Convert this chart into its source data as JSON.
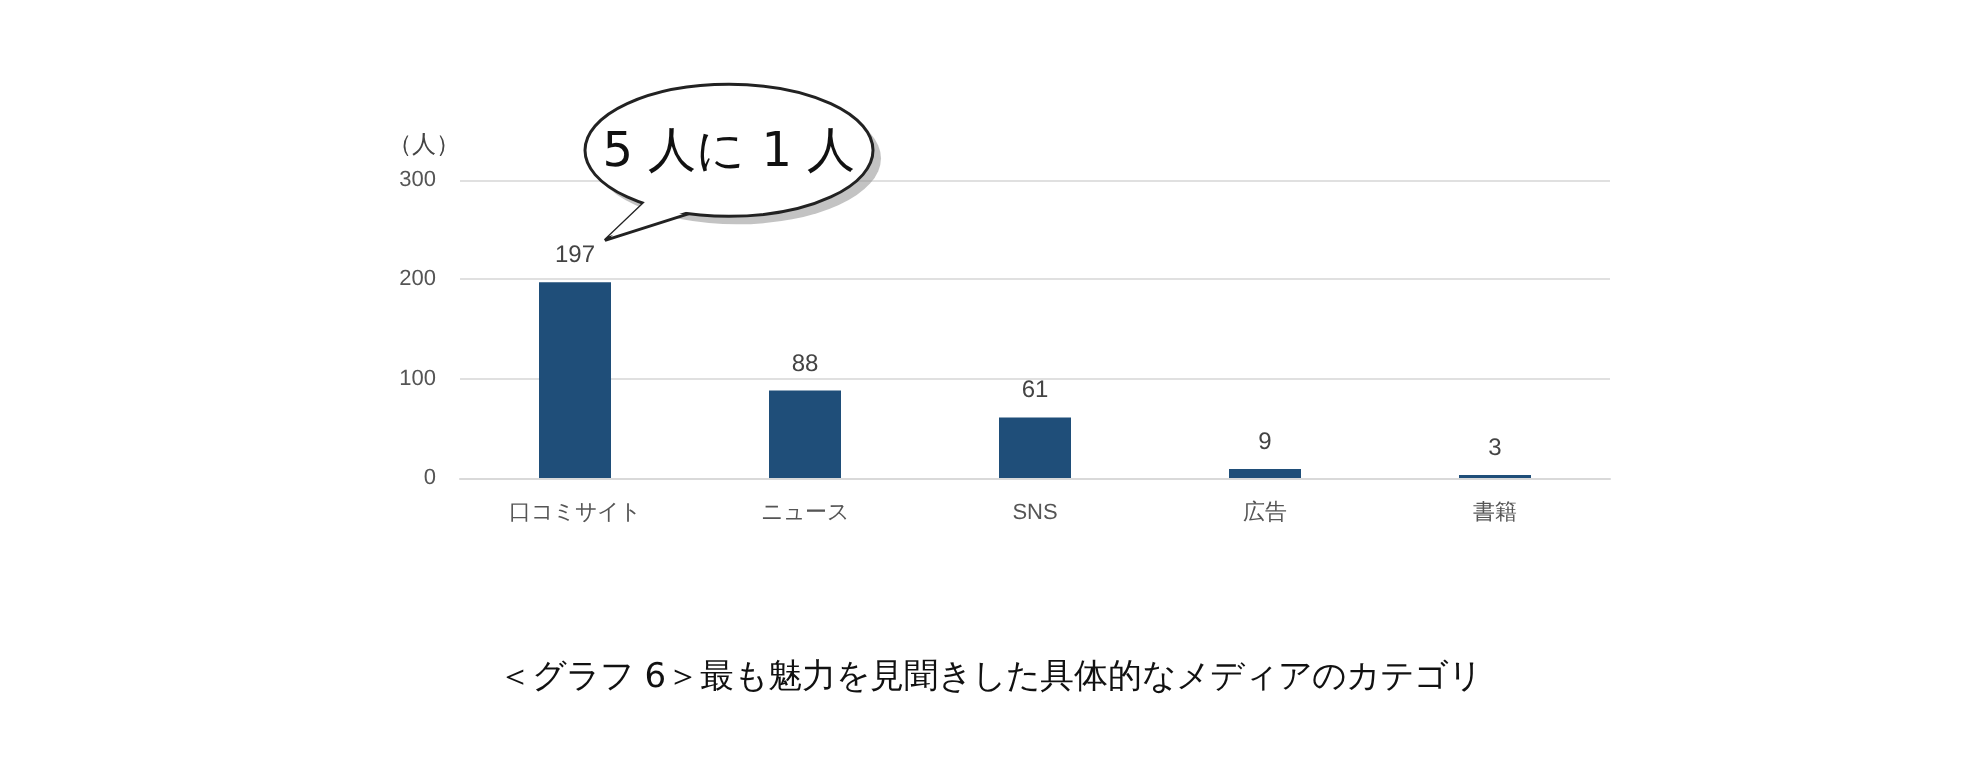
{
  "chart_data": {
    "type": "bar",
    "title": "＜グラフ 6＞最も魅力を見聞きした具体的なメディアのカテゴリ",
    "ylabel": "（人）",
    "categories": [
      "口コミサイト",
      "ニュース",
      "SNS",
      "広告",
      "書籍"
    ],
    "values": [
      197,
      88,
      61,
      9,
      3
    ],
    "color": "#1f4e79",
    "data_labels": true,
    "ylim": [
      0,
      300
    ],
    "yticks": [
      0,
      100,
      200,
      300
    ],
    "grid": "y",
    "annotations": [
      {
        "text": "5 人に 1 人",
        "x": "口コミサイト",
        "y": 197
      }
    ]
  }
}
